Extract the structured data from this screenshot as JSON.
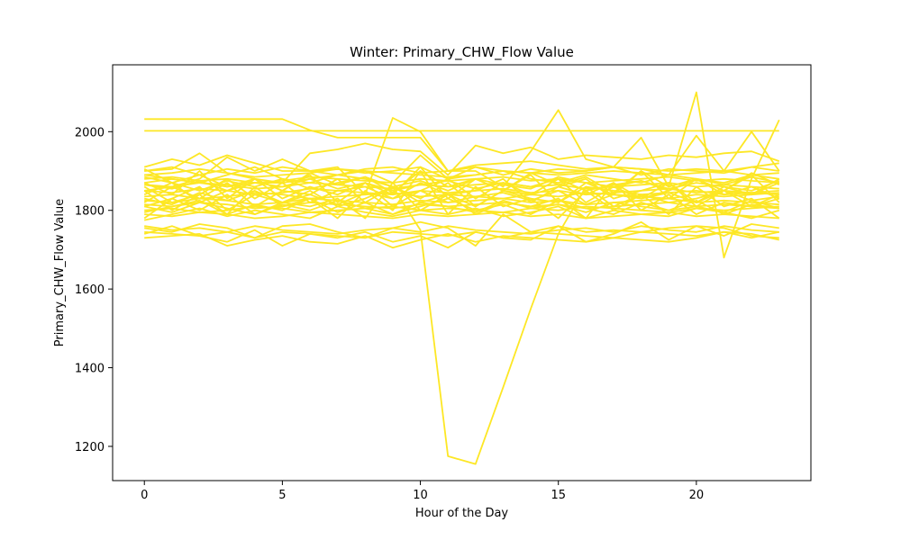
{
  "chart_data": {
    "type": "line",
    "title": "Winter: Primary_CHW_Flow Value",
    "xlabel": "Hour of the Day",
    "ylabel": "Primary_CHW_Flow Value",
    "xlim": [
      -1.15,
      24.15
    ],
    "ylim": [
      1113,
      2170
    ],
    "xticks": [
      0,
      5,
      10,
      15,
      20
    ],
    "yticks": [
      1200,
      1400,
      1600,
      1800,
      2000
    ],
    "grid": false,
    "legend": "none",
    "line_color": "#fde725",
    "x": [
      0,
      1,
      2,
      3,
      4,
      5,
      6,
      7,
      8,
      9,
      10,
      11,
      12,
      13,
      14,
      15,
      16,
      17,
      18,
      19,
      20,
      21,
      22,
      23
    ],
    "series": [
      {
        "values": [
          2032,
          2032,
          2032,
          2032,
          2032,
          2032,
          2004,
          1985,
          1985,
          1985,
          1985,
          1900,
          1915,
          1920,
          1925,
          1915,
          1905,
          1910,
          1905,
          1900,
          1905,
          1900,
          1910,
          1920
        ]
      },
      {
        "values": [
          2002,
          2002,
          2002,
          2002,
          2002,
          2002,
          2002,
          2002,
          2002,
          2002,
          2002,
          2002,
          2002,
          2002,
          2002,
          2002,
          2002,
          2002,
          2002,
          2002,
          2002,
          2002,
          2002,
          2002
        ]
      },
      {
        "values": [
          1870,
          1880,
          1870,
          1860,
          1870,
          1870,
          1880,
          1890,
          1880,
          1860,
          1750,
          1175,
          1155,
          1350,
          1550,
          1740,
          1860,
          1850,
          1840,
          1845,
          1850,
          1840,
          1845,
          1850
        ]
      },
      {
        "values": [
          1900,
          1905,
          1945,
          1895,
          1880,
          1870,
          1945,
          1955,
          1970,
          1955,
          1950,
          1890,
          1965,
          1945,
          1960,
          1930,
          1940,
          1935,
          1930,
          1940,
          1935,
          1945,
          1950,
          1925
        ]
      },
      {
        "values": [
          1850,
          1860,
          1880,
          1935,
          1900,
          1930,
          1900,
          1910,
          1840,
          2035,
          2000,
          1900,
          1900,
          1860,
          1950,
          2055,
          1930,
          1910,
          1985,
          1860,
          2100,
          1680,
          1880,
          2030
        ]
      },
      {
        "values": [
          1910,
          1930,
          1915,
          1940,
          1920,
          1900,
          1900,
          1905,
          1895,
          1900,
          1910,
          1880,
          1910,
          1900,
          1895,
          1905,
          1900,
          1910,
          1905,
          1890,
          1990,
          1900,
          2000,
          1900
        ]
      },
      {
        "values": [
          1890,
          1895,
          1905,
          1895,
          1885,
          1890,
          1895,
          1905,
          1900,
          1895,
          1890,
          1885,
          1890,
          1900,
          1895,
          1890,
          1895,
          1900,
          1895,
          1890,
          1895,
          1900,
          1890,
          1895
        ]
      },
      {
        "values": [
          1880,
          1885,
          1875,
          1880,
          1870,
          1875,
          1885,
          1880,
          1875,
          1870,
          1880,
          1875,
          1880,
          1885,
          1875,
          1880,
          1870,
          1875,
          1880,
          1885,
          1875,
          1880,
          1875,
          1870
        ]
      },
      {
        "values": [
          1865,
          1860,
          1870,
          1865,
          1855,
          1860,
          1870,
          1865,
          1860,
          1855,
          1865,
          1860,
          1865,
          1870,
          1860,
          1865,
          1855,
          1860,
          1865,
          1870,
          1860,
          1865,
          1860,
          1855
        ]
      },
      {
        "values": [
          1850,
          1845,
          1855,
          1850,
          1840,
          1845,
          1855,
          1850,
          1845,
          1840,
          1850,
          1845,
          1850,
          1855,
          1845,
          1850,
          1840,
          1845,
          1850,
          1855,
          1845,
          1850,
          1845,
          1840
        ]
      },
      {
        "values": [
          1835,
          1840,
          1830,
          1835,
          1845,
          1840,
          1830,
          1835,
          1840,
          1845,
          1835,
          1840,
          1835,
          1830,
          1840,
          1835,
          1845,
          1840,
          1835,
          1830,
          1840,
          1835,
          1840,
          1845
        ]
      },
      {
        "values": [
          1825,
          1820,
          1830,
          1825,
          1815,
          1820,
          1830,
          1825,
          1820,
          1815,
          1825,
          1820,
          1825,
          1830,
          1820,
          1825,
          1815,
          1820,
          1825,
          1830,
          1820,
          1825,
          1820,
          1815
        ]
      },
      {
        "values": [
          1815,
          1810,
          1820,
          1815,
          1805,
          1810,
          1820,
          1815,
          1810,
          1805,
          1815,
          1810,
          1815,
          1820,
          1810,
          1815,
          1805,
          1810,
          1815,
          1820,
          1810,
          1815,
          1810,
          1805
        ]
      },
      {
        "values": [
          1800,
          1805,
          1795,
          1800,
          1810,
          1805,
          1795,
          1800,
          1805,
          1810,
          1800,
          1805,
          1800,
          1795,
          1805,
          1800,
          1810,
          1805,
          1800,
          1795,
          1805,
          1800,
          1805,
          1810
        ]
      },
      {
        "values": [
          1790,
          1785,
          1795,
          1790,
          1780,
          1785,
          1795,
          1790,
          1785,
          1780,
          1790,
          1785,
          1790,
          1795,
          1785,
          1790,
          1780,
          1785,
          1790,
          1795,
          1785,
          1790,
          1785,
          1780
        ]
      },
      {
        "values": [
          1905,
          1870,
          1890,
          1860,
          1880,
          1850,
          1895,
          1865,
          1885,
          1845,
          1900,
          1860,
          1880,
          1850,
          1895,
          1865,
          1885,
          1845,
          1900,
          1860,
          1880,
          1850,
          1895,
          1865
        ]
      },
      {
        "values": [
          1820,
          1860,
          1830,
          1870,
          1810,
          1850,
          1840,
          1880,
          1820,
          1860,
          1830,
          1870,
          1810,
          1850,
          1840,
          1880,
          1820,
          1860,
          1830,
          1870,
          1810,
          1850,
          1840,
          1880
        ]
      },
      {
        "values": [
          1780,
          1830,
          1800,
          1840,
          1790,
          1820,
          1810,
          1830,
          1780,
          1870,
          1800,
          1840,
          1790,
          1820,
          1810,
          1830,
          1780,
          1870,
          1800,
          1840,
          1790,
          1820,
          1810,
          1830
        ]
      },
      {
        "values": [
          1850,
          1800,
          1840,
          1790,
          1860,
          1810,
          1830,
          1780,
          1850,
          1800,
          1900,
          1790,
          1860,
          1810,
          1830,
          1780,
          1850,
          1800,
          1840,
          1790,
          1860,
          1810,
          1830,
          1780
        ]
      },
      {
        "values": [
          1870,
          1840,
          1900,
          1830,
          1880,
          1850,
          1890,
          1820,
          1870,
          1840,
          1910,
          1830,
          1880,
          1850,
          1890,
          1820,
          1870,
          1840,
          1900,
          1830,
          1880,
          1850,
          1890,
          1820
        ]
      },
      {
        "values": [
          1760,
          1750,
          1755,
          1745,
          1760,
          1750,
          1745,
          1740,
          1750,
          1755,
          1745,
          1760,
          1750,
          1745,
          1740,
          1750,
          1755,
          1745,
          1760,
          1750,
          1745,
          1760,
          1750,
          1745
        ]
      },
      {
        "values": [
          1745,
          1740,
          1735,
          1745,
          1730,
          1745,
          1740,
          1735,
          1730,
          1745,
          1740,
          1735,
          1745,
          1730,
          1745,
          1740,
          1735,
          1730,
          1745,
          1740,
          1735,
          1745,
          1730,
          1745
        ]
      },
      {
        "values": [
          1730,
          1735,
          1740,
          1710,
          1725,
          1735,
          1720,
          1715,
          1735,
          1705,
          1725,
          1740,
          1720,
          1735,
          1730,
          1725,
          1720,
          1730,
          1725,
          1720,
          1730,
          1745,
          1740,
          1725
        ]
      },
      {
        "values": [
          1740,
          1760,
          1735,
          1720,
          1750,
          1710,
          1740,
          1730,
          1745,
          1720,
          1735,
          1705,
          1745,
          1730,
          1725,
          1760,
          1720,
          1740,
          1770,
          1725,
          1760,
          1755,
          1735,
          1730
        ]
      },
      {
        "values": [
          1755,
          1745,
          1765,
          1755,
          1730,
          1760,
          1765,
          1745,
          1730,
          1755,
          1770,
          1755,
          1710,
          1790,
          1745,
          1760,
          1745,
          1750,
          1745,
          1755,
          1760,
          1735,
          1765,
          1755
        ]
      },
      {
        "values": [
          1890,
          1880,
          1870,
          1890,
          1910,
          1880,
          1870,
          1890,
          1900,
          1870,
          1940,
          1880,
          1890,
          1900,
          1880,
          1870,
          1890,
          1880,
          1870,
          1890,
          1880,
          1870,
          1890,
          1880
        ]
      },
      {
        "values": [
          1810,
          1830,
          1860,
          1800,
          1840,
          1820,
          1850,
          1810,
          1830,
          1860,
          1820,
          1840,
          1810,
          1850,
          1830,
          1820,
          1860,
          1810,
          1840,
          1820,
          1830,
          1850,
          1810,
          1840
        ]
      },
      {
        "values": [
          1860,
          1820,
          1840,
          1880,
          1830,
          1870,
          1820,
          1850,
          1860,
          1830,
          1870,
          1840,
          1850,
          1880,
          1820,
          1860,
          1840,
          1870,
          1830,
          1850,
          1880,
          1840,
          1860,
          1830
        ]
      },
      {
        "values": [
          1840,
          1870,
          1820,
          1850,
          1880,
          1830,
          1860,
          1840,
          1870,
          1810,
          1850,
          1880,
          1830,
          1870,
          1840,
          1860,
          1880,
          1830,
          1850,
          1870,
          1820,
          1860,
          1840,
          1870
        ]
      },
      {
        "values": [
          1795,
          1810,
          1825,
          1790,
          1815,
          1800,
          1830,
          1795,
          1820,
          1790,
          1810,
          1830,
          1800,
          1815,
          1790,
          1825,
          1805,
          1790,
          1820,
          1800,
          1810,
          1795,
          1825,
          1805
        ]
      },
      {
        "values": [
          1900,
          1910,
          1890,
          1905,
          1895,
          1910,
          1900,
          1890,
          1905,
          1910,
          1895,
          1900,
          1910,
          1890,
          1905,
          1895,
          1900,
          1910,
          1890,
          1905,
          1900,
          1895,
          1910,
          1900
        ]
      },
      {
        "values": [
          1830,
          1815,
          1845,
          1825,
          1850,
          1820,
          1840,
          1815,
          1845,
          1830,
          1850,
          1820,
          1835,
          1845,
          1825,
          1850,
          1815,
          1840,
          1830,
          1845,
          1820,
          1850,
          1825,
          1835
        ]
      },
      {
        "values": [
          1775,
          1790,
          1805,
          1785,
          1800,
          1790,
          1780,
          1810,
          1795,
          1785,
          1800,
          1790,
          1805,
          1785,
          1795,
          1810,
          1780,
          1800,
          1790,
          1785,
          1805,
          1795,
          1780,
          1800
        ]
      },
      {
        "values": [
          1865,
          1855,
          1875,
          1850,
          1870,
          1860,
          1880,
          1855,
          1870,
          1850,
          1865,
          1875,
          1855,
          1870,
          1860,
          1880,
          1850,
          1865,
          1875,
          1855,
          1870,
          1860,
          1850,
          1875
        ]
      },
      {
        "values": [
          1885,
          1870,
          1850,
          1875,
          1860,
          1880,
          1855,
          1870,
          1885,
          1860,
          1875,
          1850,
          1880,
          1865,
          1855,
          1885,
          1870,
          1860,
          1875,
          1850,
          1880,
          1865,
          1885,
          1870
        ]
      },
      {
        "values": [
          1810,
          1795,
          1820,
          1805,
          1790,
          1815,
          1800,
          1825,
          1805,
          1790,
          1820,
          1810,
          1795,
          1825,
          1805,
          1815,
          1795,
          1820,
          1810,
          1800,
          1825,
          1790,
          1815,
          1805
        ]
      }
    ]
  }
}
